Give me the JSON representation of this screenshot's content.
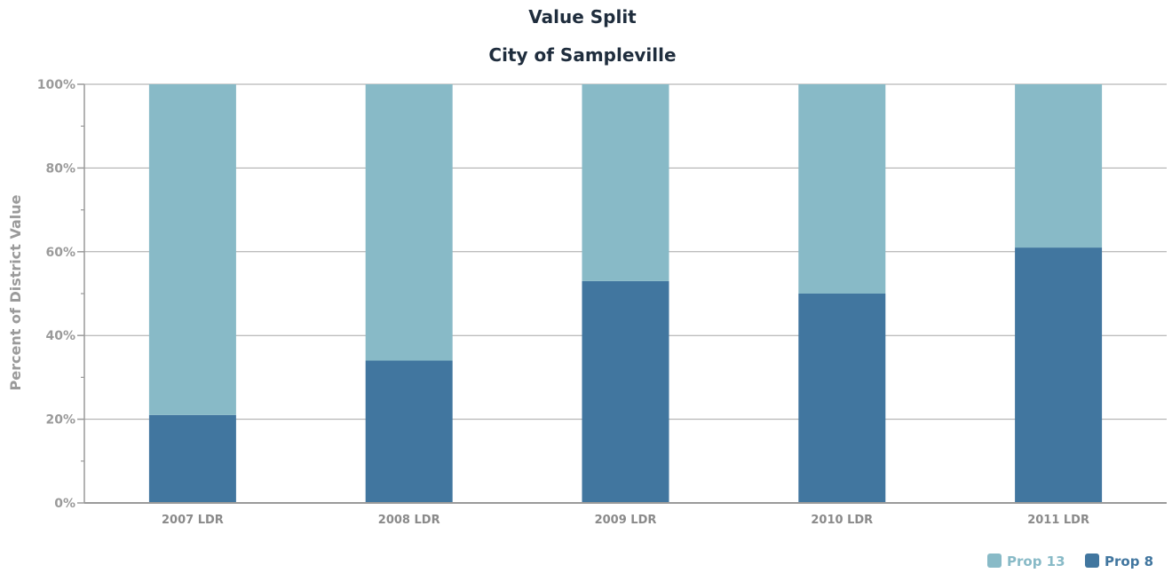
{
  "chart_data": {
    "type": "bar",
    "stacked": true,
    "title": "Value Split",
    "subtitle": "City of Sampleville",
    "xlabel": "",
    "ylabel": "Percent of District Value",
    "ylim": [
      0,
      100
    ],
    "yticks": [
      "0%",
      "20%",
      "40%",
      "60%",
      "80%",
      "100%"
    ],
    "grid": true,
    "legend_position": "bottom-right",
    "categories": [
      "2007 LDR",
      "2008 LDR",
      "2009 LDR",
      "2010 LDR",
      "2011 LDR"
    ],
    "series": [
      {
        "name": "Prop 8",
        "color": "#41769f",
        "values": [
          21,
          34,
          53,
          50,
          61
        ]
      },
      {
        "name": "Prop 13",
        "color": "#88bac7",
        "values": [
          79,
          66,
          47,
          50,
          39
        ]
      }
    ],
    "legend": [
      "Prop 13",
      "Prop 8"
    ]
  }
}
